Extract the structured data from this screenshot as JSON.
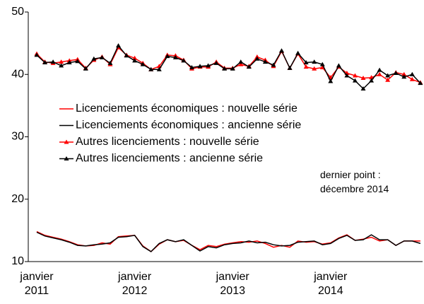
{
  "chart_data": {
    "type": "line",
    "categories": [
      "janvier\n2011",
      null,
      null,
      null,
      null,
      null,
      null,
      null,
      null,
      null,
      null,
      null,
      "janvier\n2012",
      null,
      null,
      null,
      null,
      null,
      null,
      null,
      null,
      null,
      null,
      null,
      "janvier\n2013",
      null,
      null,
      null,
      null,
      null,
      null,
      null,
      null,
      null,
      null,
      null,
      "janvier\n2014",
      null,
      null,
      null,
      null,
      null,
      null,
      null,
      null,
      null,
      null,
      null
    ],
    "series": [
      {
        "name": "Licenciements économiques : nouvelle série",
        "color": "#ff0000",
        "marker": "none",
        "values": [
          14.8,
          14.2,
          13.9,
          13.6,
          13.2,
          12.7,
          12.5,
          12.6,
          13.0,
          12.8,
          14.0,
          14.1,
          14.2,
          12.5,
          11.6,
          12.8,
          13.5,
          13.2,
          13.4,
          12.6,
          11.9,
          12.6,
          12.4,
          12.8,
          13.0,
          13.2,
          13.1,
          13.3,
          12.9,
          12.3,
          12.6,
          12.3,
          13.3,
          13.1,
          13.2,
          12.8,
          13.0,
          13.8,
          14.3,
          13.4,
          13.6,
          13.9,
          13.3,
          13.5,
          12.6,
          13.3,
          13.3,
          13.3
        ]
      },
      {
        "name": "Licenciements économiques : ancienne série",
        "color": "#000000",
        "marker": "none",
        "values": [
          14.7,
          14.1,
          13.8,
          13.5,
          13.1,
          12.6,
          12.5,
          12.7,
          12.8,
          13.0,
          13.9,
          14.0,
          14.2,
          12.4,
          11.6,
          12.9,
          13.5,
          13.2,
          13.5,
          12.6,
          11.7,
          12.4,
          12.2,
          12.7,
          12.9,
          13.0,
          13.3,
          13.0,
          13.1,
          12.7,
          12.5,
          12.6,
          13.1,
          13.2,
          13.3,
          12.7,
          12.9,
          13.7,
          14.2,
          13.4,
          13.5,
          14.3,
          13.5,
          13.5,
          12.6,
          13.3,
          13.3,
          12.9
        ]
      },
      {
        "name": "Autres licenciements : nouvelle série",
        "color": "#ff0000",
        "marker": "triangle",
        "values": [
          43.3,
          42.0,
          41.8,
          42.0,
          42.2,
          42.4,
          41.0,
          42.3,
          42.8,
          41.6,
          44.3,
          43.1,
          42.6,
          41.8,
          40.8,
          41.3,
          43.1,
          43.0,
          42.3,
          40.9,
          41.2,
          41.2,
          42.0,
          41.0,
          41.0,
          41.6,
          41.3,
          42.8,
          42.3,
          41.3,
          43.7,
          41.0,
          43.3,
          41.2,
          40.9,
          41.1,
          39.5,
          41.2,
          40.2,
          39.8,
          39.4,
          39.5,
          40.0,
          39.1,
          40.3,
          40.0,
          39.2,
          38.7
        ]
      },
      {
        "name": "Autres licenciements : ancienne série",
        "color": "#000000",
        "marker": "triangle",
        "values": [
          43.1,
          41.9,
          42.0,
          41.4,
          41.9,
          42.1,
          40.9,
          42.5,
          42.7,
          41.8,
          44.6,
          43.0,
          42.2,
          41.6,
          40.8,
          40.8,
          42.9,
          42.7,
          42.2,
          41.1,
          41.3,
          41.4,
          41.8,
          40.9,
          40.9,
          42.0,
          41.2,
          42.5,
          42.0,
          41.5,
          43.8,
          41.0,
          43.4,
          41.9,
          42.0,
          41.6,
          38.9,
          41.4,
          39.8,
          39.0,
          37.7,
          39.0,
          40.7,
          39.8,
          40.2,
          39.6,
          40.0,
          38.6
        ]
      }
    ],
    "ylim": [
      10,
      50
    ],
    "yticks": [
      10,
      20,
      30,
      40,
      50
    ],
    "grid": false,
    "annotation": "dernier point :\ndécembre 2014"
  }
}
